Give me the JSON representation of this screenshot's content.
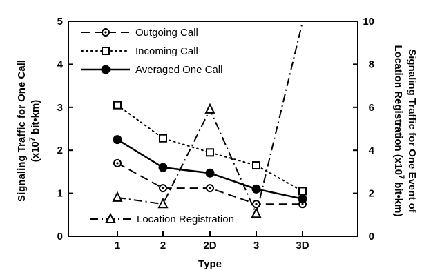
{
  "chart_data": {
    "type": "line",
    "categories": [
      "1",
      "2",
      "2D",
      "3",
      "3D"
    ],
    "xlabel": "Type",
    "ylabel_left": [
      "Signaling Traffic for One Call",
      "(x10",
      "7",
      " bit•km)"
    ],
    "ylabel_right": [
      "Signaling Traffic for One Event of",
      "Location Registration (x10",
      "7",
      " bit•km)"
    ],
    "ylim_left": [
      0,
      5
    ],
    "ylim_right": [
      0,
      10
    ],
    "yticks_left": [
      "0",
      "1",
      "2",
      "3",
      "4",
      "5"
    ],
    "yticks_right": [
      "0",
      "2",
      "4",
      "6",
      "8",
      "10"
    ],
    "grid": false,
    "legend_position": "top-left",
    "series": [
      {
        "name": "Outgoing Call",
        "axis": "left",
        "style": "dashed",
        "marker": "circle-dot",
        "values": [
          1.7,
          1.12,
          1.12,
          0.75,
          0.75
        ]
      },
      {
        "name": "Incoming Call",
        "axis": "left",
        "style": "dotted",
        "marker": "open-square",
        "values": [
          3.05,
          2.28,
          1.95,
          1.65,
          1.05
        ]
      },
      {
        "name": "Averaged One Call",
        "axis": "left",
        "style": "solid",
        "marker": "filled-circle",
        "values": [
          2.25,
          1.6,
          1.47,
          1.1,
          0.87
        ]
      },
      {
        "name": "Location Registration",
        "axis": "right",
        "style": "dash-dot",
        "marker": "open-triangle",
        "values": [
          1.8,
          1.5,
          5.9,
          1.05,
          10.3
        ]
      }
    ],
    "colors": {
      "ink": "#000000",
      "background": "#ffffff"
    }
  }
}
